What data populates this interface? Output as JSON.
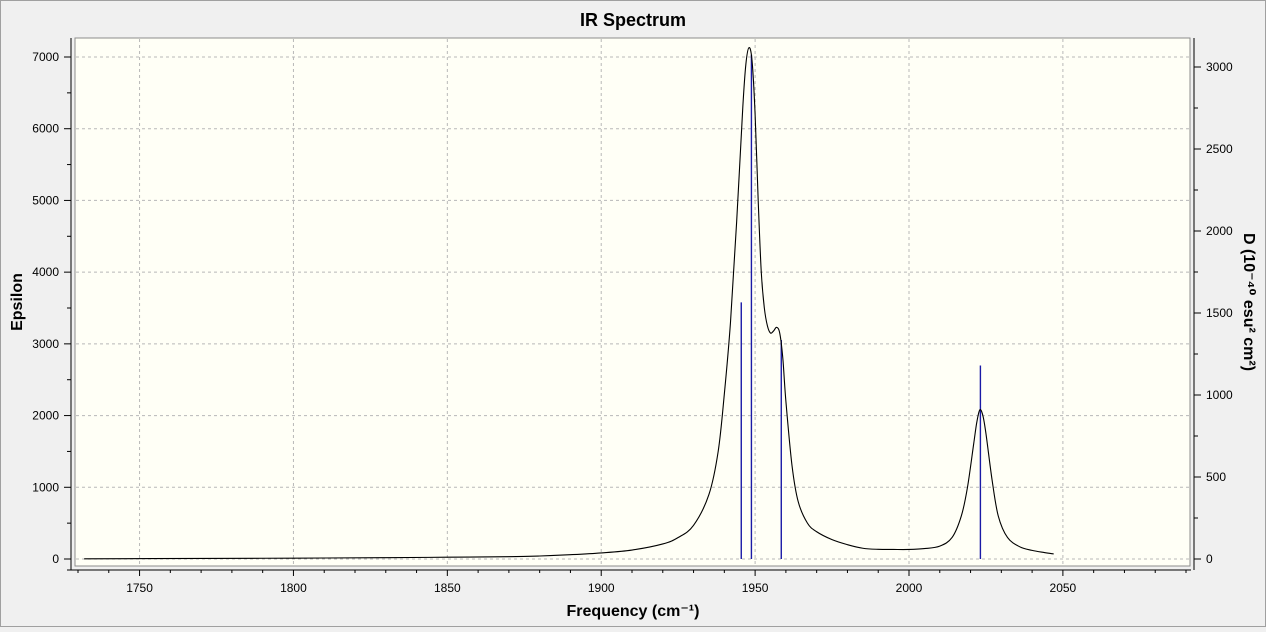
{
  "chart_data": {
    "type": "line",
    "title": "IR Spectrum",
    "xlabel": "Frequency (cm⁻¹)",
    "ylabel_left": "Epsilon",
    "ylabel_right": "D (10⁻⁴⁰ esu² cm²)",
    "xlim": [
      1730,
      2090
    ],
    "ylim_left": [
      0,
      7200
    ],
    "ylim_right": [
      0,
      3155
    ],
    "x_ticks": [
      1750,
      1800,
      1850,
      1900,
      1950,
      2000,
      2050
    ],
    "y_ticks_left": [
      0,
      1000,
      2000,
      3000,
      4000,
      5000,
      6000,
      7000
    ],
    "y_ticks_right": [
      0,
      500,
      1000,
      1500,
      2000,
      2500,
      3000
    ],
    "grid": true,
    "series": [
      {
        "kind": "line",
        "axis": "left",
        "color": "#000000",
        "points": [
          [
            1732,
            2
          ],
          [
            1770,
            8
          ],
          [
            1800,
            12
          ],
          [
            1830,
            18
          ],
          [
            1850,
            25
          ],
          [
            1870,
            32
          ],
          [
            1880,
            42
          ],
          [
            1890,
            60
          ],
          [
            1900,
            85
          ],
          [
            1910,
            125
          ],
          [
            1920,
            210
          ],
          [
            1925,
            300
          ],
          [
            1930,
            470
          ],
          [
            1935,
            900
          ],
          [
            1938,
            1500
          ],
          [
            1940,
            2300
          ],
          [
            1942,
            3300
          ],
          [
            1944,
            4700
          ],
          [
            1946,
            6300
          ],
          [
            1947,
            6900
          ],
          [
            1948,
            7130
          ],
          [
            1949,
            6950
          ],
          [
            1950,
            6200
          ],
          [
            1951,
            5000
          ],
          [
            1952,
            4000
          ],
          [
            1953,
            3500
          ],
          [
            1954,
            3250
          ],
          [
            1955,
            3150
          ],
          [
            1956,
            3180
          ],
          [
            1957,
            3230
          ],
          [
            1958,
            3150
          ],
          [
            1959,
            2800
          ],
          [
            1960,
            2200
          ],
          [
            1962,
            1300
          ],
          [
            1964,
            800
          ],
          [
            1967,
            500
          ],
          [
            1970,
            380
          ],
          [
            1975,
            270
          ],
          [
            1980,
            200
          ],
          [
            1985,
            150
          ],
          [
            1990,
            135
          ],
          [
            1995,
            133
          ],
          [
            2000,
            133
          ],
          [
            2005,
            145
          ],
          [
            2010,
            180
          ],
          [
            2014,
            300
          ],
          [
            2017,
            600
          ],
          [
            2019,
            1000
          ],
          [
            2021,
            1600
          ],
          [
            2022,
            1900
          ],
          [
            2023,
            2080
          ],
          [
            2024,
            2000
          ],
          [
            2025,
            1750
          ],
          [
            2027,
            1100
          ],
          [
            2029,
            600
          ],
          [
            2032,
            300
          ],
          [
            2036,
            170
          ],
          [
            2040,
            120
          ],
          [
            2044,
            90
          ],
          [
            2047,
            70
          ]
        ]
      },
      {
        "kind": "sticks",
        "axis": "right",
        "color": "#1a1aa6",
        "x": [
          1945.5,
          1948.8,
          1958.5,
          2023.2
        ],
        "values": [
          1565,
          3075,
          1335,
          1180
        ]
      }
    ]
  }
}
